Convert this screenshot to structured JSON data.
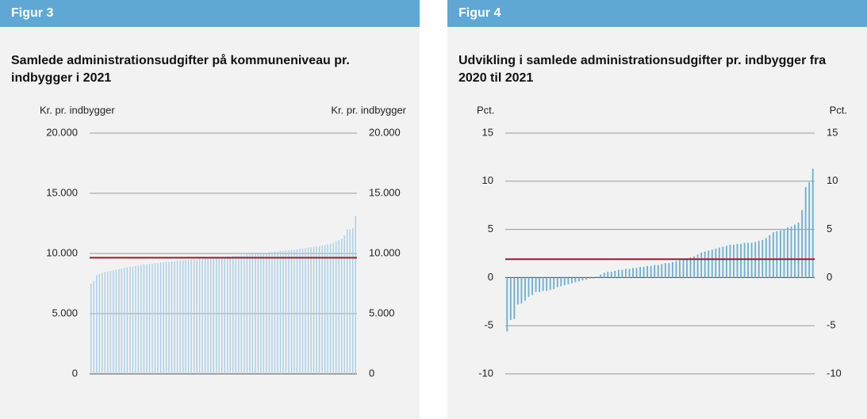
{
  "chart_data": [
    {
      "type": "bar",
      "header": "Figur 3",
      "title": "Samlede administrationsudgifter på kommuneniveau pr. indbygger i 2021",
      "ylabel": "Kr. pr. indbygger",
      "ylim": [
        0,
        20000
      ],
      "yticks": [
        {
          "value": 0,
          "label": "0"
        },
        {
          "value": 5000,
          "label": "5.000"
        },
        {
          "value": 10000,
          "label": "10.000"
        },
        {
          "value": 15000,
          "label": "15.000"
        },
        {
          "value": 20000,
          "label": "20.000"
        }
      ],
      "grid": true,
      "color": "#a9cfe8",
      "reference_line": 9650,
      "reference_color": "#9b1b30",
      "values": [
        7500,
        7700,
        8200,
        8300,
        8400,
        8450,
        8500,
        8550,
        8600,
        8650,
        8700,
        8750,
        8800,
        8850,
        8900,
        8900,
        8950,
        9000,
        9050,
        9100,
        9100,
        9150,
        9150,
        9200,
        9200,
        9250,
        9250,
        9300,
        9300,
        9350,
        9350,
        9400,
        9400,
        9400,
        9450,
        9450,
        9500,
        9500,
        9500,
        9550,
        9550,
        9600,
        9600,
        9600,
        9650,
        9650,
        9700,
        9700,
        9700,
        9750,
        9750,
        9800,
        9800,
        9800,
        9850,
        9850,
        9900,
        9900,
        9950,
        9950,
        10000,
        10000,
        10050,
        10050,
        10100,
        10100,
        10150,
        10150,
        10200,
        10200,
        10250,
        10250,
        10300,
        10300,
        10350,
        10400,
        10400,
        10450,
        10500,
        10500,
        10550,
        10600,
        10600,
        10650,
        10700,
        10750,
        10800,
        10900,
        11000,
        11100,
        11200,
        11500,
        12000,
        12000,
        12100,
        13100
      ]
    },
    {
      "type": "bar",
      "header": "Figur 4",
      "title": "Udvikling i samlede administrationsudgifter pr. indbygger fra 2020 til 2021",
      "ylabel": "Pct.",
      "ylim": [
        -10,
        15
      ],
      "yticks": [
        -10,
        -5,
        0,
        5,
        10,
        15
      ],
      "grid": true,
      "color": "#6aaed6",
      "reference_line": 1.9,
      "reference_color": "#9b1b30",
      "values": [
        -5.6,
        -4.4,
        -4.3,
        -2.8,
        -2.7,
        -2.4,
        -2.0,
        -1.8,
        -1.5,
        -1.5,
        -1.4,
        -1.4,
        -1.3,
        -1.2,
        -1.0,
        -0.9,
        -0.8,
        -0.7,
        -0.6,
        -0.5,
        -0.4,
        -0.3,
        -0.2,
        -0.1,
        -0.1,
        0.1,
        0.3,
        0.5,
        0.6,
        0.6,
        0.7,
        0.8,
        0.8,
        0.9,
        0.9,
        1.0,
        1.0,
        1.1,
        1.1,
        1.2,
        1.2,
        1.3,
        1.3,
        1.4,
        1.5,
        1.5,
        1.6,
        1.7,
        1.8,
        1.9,
        2.0,
        2.1,
        2.2,
        2.4,
        2.6,
        2.7,
        2.8,
        2.9,
        3.0,
        3.1,
        3.2,
        3.3,
        3.4,
        3.4,
        3.5,
        3.5,
        3.6,
        3.6,
        3.6,
        3.7,
        3.8,
        3.9,
        4.1,
        4.4,
        4.7,
        4.8,
        4.9,
        5.0,
        5.2,
        5.3,
        5.5,
        5.7,
        7.0,
        9.4,
        9.9,
        11.3
      ]
    }
  ]
}
